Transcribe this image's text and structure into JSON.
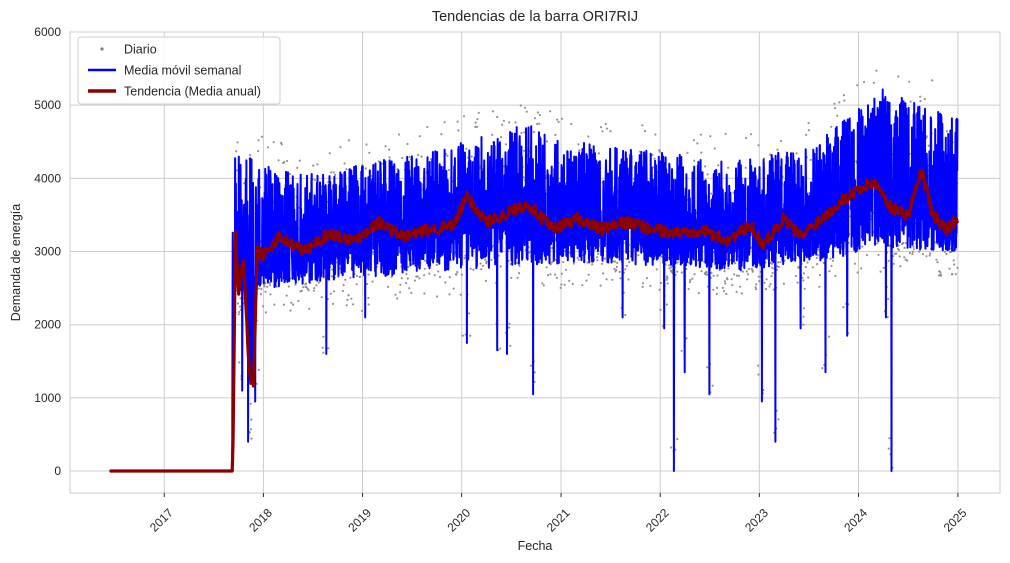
{
  "chart_data": {
    "type": "line",
    "title": "Tendencias de la barra ORI7RIJ",
    "xlabel": "Fecha",
    "ylabel": "Demanda de energía",
    "xlim": [
      "2016-01-20",
      "2025-06-05"
    ],
    "ylim": [
      -300,
      6000
    ],
    "x_ticks": [
      "2017",
      "2018",
      "2019",
      "2020",
      "2021",
      "2022",
      "2023",
      "2024",
      "2025"
    ],
    "y_ticks": [
      0,
      1000,
      2000,
      3000,
      4000,
      5000,
      6000
    ],
    "grid": true,
    "legend_position": "top-left",
    "colors": {
      "daily": "#808080",
      "weekly": "#0000ff",
      "trend": "#8b0000",
      "grid": "#cccccc",
      "axis": "#cccccc",
      "text": "#262626"
    },
    "series": [
      {
        "name": "Diario",
        "style": "dots",
        "description_points": [
          [
            "2016-06-15",
            0
          ],
          [
            "2017-09-01",
            0
          ],
          [
            "2017-09-15",
            3400
          ],
          [
            "2018-06-01",
            3100
          ],
          [
            "2019-06-01",
            3200
          ],
          [
            "2020-01-15",
            3600
          ],
          [
            "2021-01-01",
            3300
          ],
          [
            "2022-01-01",
            3300
          ],
          [
            "2023-01-01",
            3100
          ],
          [
            "2024-01-01",
            3700
          ],
          [
            "2024-12-31",
            3400
          ]
        ],
        "envelope": {
          "start": "2017-09-10",
          "end": "2024-12-31",
          "low": [
            2100,
            2200,
            2300,
            2400,
            2450,
            2500,
            2450,
            2400,
            2500,
            2700,
            2650
          ],
          "high": [
            4700,
            4400,
            4600,
            4800,
            5100,
            4800,
            4700,
            4600,
            4800,
            5600,
            5200
          ]
        }
      },
      {
        "name": "Media móvil semanal",
        "style": "line",
        "drops": [
          [
            "2017-10-15",
            1100
          ],
          [
            "2017-11-05",
            400
          ],
          [
            "2017-12-01",
            950
          ],
          [
            "2018-08-20",
            1600
          ],
          [
            "2019-01-10",
            2100
          ],
          [
            "2020-01-20",
            1750
          ],
          [
            "2020-05-10",
            1650
          ],
          [
            "2020-06-15",
            1600
          ],
          [
            "2020-09-20",
            1050
          ],
          [
            "2021-08-15",
            2100
          ],
          [
            "2022-01-15",
            1950
          ],
          [
            "2022-02-20",
            0
          ],
          [
            "2022-04-01",
            1350
          ],
          [
            "2022-07-01",
            1050
          ],
          [
            "2023-01-10",
            950
          ],
          [
            "2023-03-01",
            400
          ],
          [
            "2023-06-01",
            1950
          ],
          [
            "2023-09-01",
            1350
          ],
          [
            "2023-11-20",
            1850
          ],
          [
            "2024-04-10",
            2100
          ],
          [
            "2024-05-01",
            0
          ]
        ]
      },
      {
        "name": "Tendencia (Media anual)",
        "style": "line",
        "x": [
          "2016-06-15",
          "2017-06-01",
          "2017-09-10",
          "2017-09-20",
          "2017-10-01",
          "2017-10-20",
          "2017-11-10",
          "2017-11-25",
          "2017-12-10",
          "2018-01-01",
          "2018-03-01",
          "2018-06-01",
          "2018-09-01",
          "2018-12-01",
          "2019-03-01",
          "2019-06-01",
          "2019-09-01",
          "2019-12-01",
          "2020-01-20",
          "2020-04-01",
          "2020-06-01",
          "2020-09-01",
          "2020-12-01",
          "2021-03-01",
          "2021-06-01",
          "2021-09-01",
          "2021-12-01",
          "2022-03-01",
          "2022-06-01",
          "2022-09-01",
          "2022-12-01",
          "2023-01-15",
          "2023-04-01",
          "2023-06-01",
          "2023-09-01",
          "2023-11-01",
          "2024-01-01",
          "2024-03-01",
          "2024-05-01",
          "2024-07-01",
          "2024-08-20",
          "2024-10-01",
          "2024-11-20",
          "2024-12-31"
        ],
        "y": [
          0,
          0,
          0,
          3300,
          2400,
          2900,
          1300,
          1200,
          3000,
          2950,
          3200,
          3000,
          3250,
          3150,
          3400,
          3200,
          3300,
          3350,
          3750,
          3400,
          3500,
          3650,
          3300,
          3450,
          3300,
          3400,
          3300,
          3250,
          3300,
          3150,
          3350,
          3100,
          3450,
          3200,
          3500,
          3700,
          3850,
          3950,
          3600,
          3500,
          4100,
          3500,
          3300,
          3450
        ]
      }
    ]
  }
}
